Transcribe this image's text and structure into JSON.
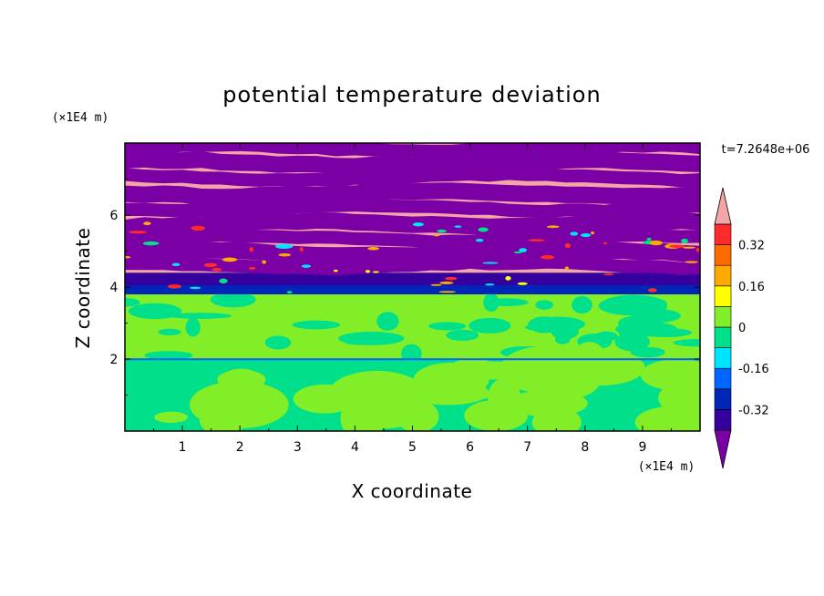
{
  "chart_data": {
    "type": "heatmap",
    "title": "potential temperature deviation",
    "xlabel": "X coordinate",
    "ylabel": "Z coordinate",
    "x_unit": "(×1E4 m)",
    "y_unit": "(×1E4 m)",
    "time_label": "t=7.2648e+06",
    "xlim": [
      0,
      10
    ],
    "ylim": [
      0,
      8
    ],
    "x_ticks": [
      "1",
      "2",
      "3",
      "4",
      "5",
      "6",
      "7",
      "8",
      "9"
    ],
    "y_ticks": [
      "2",
      "4",
      "6"
    ],
    "colorbar": {
      "levels": [
        -0.48,
        -0.4,
        -0.32,
        -0.24,
        -0.16,
        -0.08,
        0,
        0.08,
        0.16,
        0.24,
        0.32,
        0.4,
        0.48
      ],
      "tick_labels": [
        "0.32",
        "0.16",
        "0",
        "-0.16",
        "-0.32"
      ],
      "colors": [
        "#7a00a6",
        "#36009e",
        "#0026b8",
        "#0066ff",
        "#00e5ff",
        "#00e08a",
        "#82ee28",
        "#ffff00",
        "#ffaa00",
        "#ff6a00",
        "#ff2a2a",
        "#f4a6a6"
      ]
    },
    "description_bands": [
      {
        "z_range": [
          0,
          2.0
        ],
        "dominant": "green / light-green turbulent cells"
      },
      {
        "z_range": [
          2.0,
          3.8
        ],
        "dominant": "light-green with green patches"
      },
      {
        "z_range": [
          3.8,
          4.4
        ],
        "dominant": "dark blue / mixed layer"
      },
      {
        "z_range": [
          4.4,
          8.0
        ],
        "dominant": "alternating purple and pink layers"
      }
    ]
  }
}
